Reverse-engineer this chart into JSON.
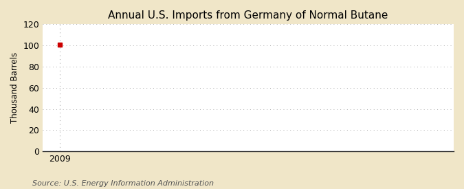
{
  "title": "Annual U.S. Imports from Germany of Normal Butane",
  "ylabel": "Thousand Barrels",
  "source_text": "Source: U.S. Energy Information Administration",
  "x_data": [
    2009
  ],
  "y_data": [
    101
  ],
  "marker_color": "#cc0000",
  "marker_style": "s",
  "marker_size": 4,
  "xlim": [
    2008.4,
    2023
  ],
  "ylim": [
    0,
    120
  ],
  "yticks": [
    0,
    20,
    40,
    60,
    80,
    100,
    120
  ],
  "xticks": [
    2009
  ],
  "xtick_labels": [
    "2009"
  ],
  "outer_background": "#f0e6c8",
  "plot_background": "#ffffff",
  "grid_color": "#aaaaaa",
  "spine_bottom_color": "#333333",
  "title_fontsize": 11,
  "label_fontsize": 8.5,
  "tick_fontsize": 9,
  "source_fontsize": 8
}
